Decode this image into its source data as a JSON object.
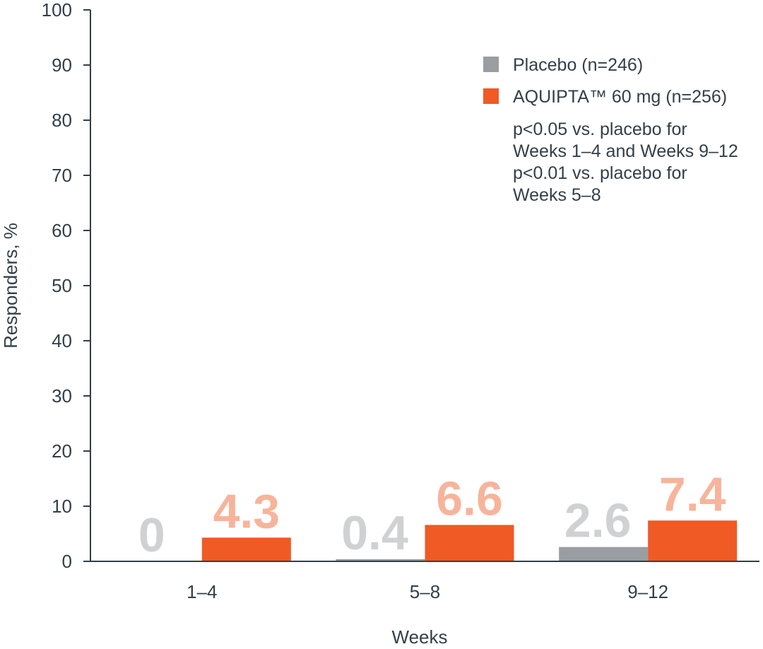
{
  "chart_data": {
    "type": "bar",
    "title": "",
    "xlabel": "Weeks",
    "ylabel": "Responders, %",
    "categories": [
      "1–4",
      "5–8",
      "9–12"
    ],
    "ylim": [
      0,
      100
    ],
    "yticks": [
      0,
      10,
      20,
      30,
      40,
      50,
      60,
      70,
      80,
      90,
      100
    ],
    "grid": false,
    "legend_position": "top-right",
    "series": [
      {
        "name": "Placebo (n=246)",
        "values": [
          0,
          0.4,
          2.6
        ],
        "color": "#9a9ea3",
        "label_color": "#cfd1d3"
      },
      {
        "name": "AQUIPTA™ 60 mg (n=256)",
        "values": [
          4.3,
          6.6,
          7.4
        ],
        "color": "#f05a24",
        "label_color": "#f7b49b"
      }
    ],
    "value_labels": [
      [
        "0",
        "0.4",
        "2.6"
      ],
      [
        "4.3",
        "6.6",
        "7.4"
      ]
    ],
    "annotations": [
      "p<0.05 vs. placebo for",
      "Weeks 1–4 and Weeks 9–12",
      "p<0.01 vs. placebo for",
      "Weeks 5–8"
    ]
  }
}
